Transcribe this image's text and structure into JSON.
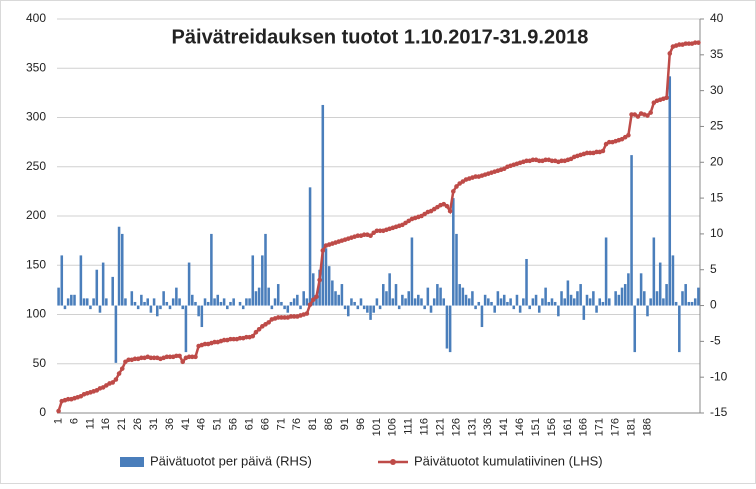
{
  "chart_data": {
    "type": "combo",
    "title": "Päivätreidauksen tuotot 1.10.2017-31.9.2018",
    "categories": [
      1,
      null,
      null,
      null,
      null,
      6,
      null,
      null,
      null,
      null,
      11,
      null,
      null,
      null,
      null,
      16,
      null,
      null,
      null,
      null,
      21,
      null,
      null,
      null,
      null,
      26,
      null,
      null,
      null,
      null,
      31,
      null,
      null,
      null,
      null,
      36,
      null,
      null,
      null,
      null,
      41,
      null,
      null,
      null,
      null,
      46,
      null,
      null,
      null,
      null,
      51,
      null,
      null,
      null,
      null,
      56,
      null,
      null,
      null,
      null,
      61,
      null,
      null,
      null,
      null,
      66,
      null,
      null,
      null,
      null,
      71,
      null,
      null,
      null,
      null,
      76,
      null,
      null,
      null,
      null,
      81,
      null,
      null,
      null,
      null,
      86,
      null,
      null,
      null,
      null,
      91,
      null,
      null,
      null,
      null,
      96,
      null,
      null,
      null,
      null,
      101,
      null,
      null,
      null,
      null,
      106,
      null,
      null,
      null,
      null,
      111,
      null,
      null,
      null,
      null,
      116,
      null,
      null,
      null,
      null,
      121,
      null,
      null,
      null,
      null,
      126,
      null,
      null,
      null,
      null,
      131,
      null,
      null,
      null,
      null,
      136,
      null,
      null,
      null,
      null,
      141,
      null,
      null,
      null,
      null,
      146,
      null,
      null,
      null,
      null,
      151,
      null,
      null,
      null,
      null,
      156,
      null,
      null,
      null,
      null,
      161,
      null,
      null,
      null,
      null,
      166,
      null,
      null,
      null,
      null,
      171,
      null,
      null,
      null,
      null,
      176,
      null,
      null,
      null,
      null,
      181,
      null,
      null,
      null,
      null,
      186,
      null,
      null,
      null,
      null,
      null,
      null,
      null,
      null,
      null,
      null,
      null,
      null,
      null,
      null,
      null,
      null
    ],
    "series": [
      {
        "name": "Päivätuotot per päivä (RHS)",
        "type": "bar",
        "axis": "y2",
        "color": "#4a7ebb",
        "values": [
          2.5,
          7,
          -0.5,
          1,
          1.5,
          1.5,
          0,
          7,
          1,
          1,
          -0.5,
          1,
          5,
          -1,
          6,
          1,
          0,
          4,
          -8,
          11,
          10,
          1,
          0,
          2,
          0.5,
          -0.5,
          1.5,
          0.5,
          1,
          -1,
          1,
          -1.5,
          -0.5,
          2,
          0.5,
          -0.5,
          1,
          2.5,
          1,
          -0.5,
          -6.5,
          6,
          1.5,
          0.5,
          -1.5,
          -3,
          1,
          0.5,
          10,
          1,
          1.5,
          0.5,
          1,
          -0.5,
          0.5,
          1,
          0,
          0.5,
          -0.5,
          1,
          1,
          7,
          2,
          2.5,
          7,
          10,
          2.5,
          -0.5,
          1,
          3,
          0.5,
          -0.5,
          -1,
          0.5,
          1,
          1.5,
          -0.5,
          2,
          1,
          16.5,
          4.5,
          1,
          5,
          28,
          8,
          5.5,
          3.5,
          2,
          1.5,
          3,
          -0.5,
          -1.5,
          1,
          0.5,
          -0.5,
          1,
          -0.5,
          -1,
          -2,
          -1,
          1,
          -0.5,
          3,
          2,
          4.5,
          1,
          3,
          -0.5,
          1.5,
          1,
          2,
          9.5,
          1,
          1.5,
          1,
          -0.5,
          2.5,
          -1,
          1,
          3,
          2.5,
          1,
          -6,
          -6.5,
          15,
          10,
          3,
          2.5,
          1.5,
          1,
          2,
          -0.5,
          0.5,
          -3,
          1.5,
          1,
          0.5,
          -1,
          2,
          1,
          1.5,
          0.5,
          1,
          -0.5,
          1.5,
          -1,
          1,
          6.5,
          -0.5,
          1,
          1.5,
          -1,
          1,
          2.5,
          0.5,
          1,
          0.5,
          -1.5,
          2,
          1,
          3.5,
          1.5,
          1,
          2,
          3,
          -2,
          1.5,
          1,
          2,
          -1,
          1,
          0.5,
          9.5,
          1,
          0,
          2,
          1.5,
          2.5,
          3,
          4.5,
          21,
          -6.5,
          1,
          4.5,
          2,
          -1.5,
          1,
          9.5,
          2,
          6,
          1,
          3,
          32,
          7,
          0.5,
          -6.5,
          2,
          3,
          0.5,
          0.5,
          1,
          2.5
        ]
      },
      {
        "name": "Päivätuotot kumulatiivinen (LHS)",
        "type": "line",
        "color": "#be4b48",
        "values": [
          2,
          12,
          13,
          14,
          14,
          15,
          16,
          17,
          19,
          20,
          21,
          22,
          23,
          25,
          26,
          28,
          30,
          31,
          34,
          40,
          45,
          52,
          54,
          54,
          55,
          55,
          56,
          56,
          57,
          56,
          56,
          56,
          55,
          56,
          57,
          57,
          57,
          58,
          58,
          52,
          56,
          57,
          57,
          57,
          68,
          69,
          70,
          70,
          71,
          72,
          72,
          73,
          74,
          74,
          75,
          75,
          75,
          76,
          76,
          77,
          77,
          78,
          82,
          85,
          88,
          90,
          92,
          95,
          96,
          97,
          97,
          97,
          97,
          98,
          98,
          98,
          99,
          100,
          101,
          110,
          115,
          118,
          135,
          165,
          170,
          171,
          172,
          173,
          174,
          175,
          176,
          177,
          178,
          179,
          180,
          180,
          181,
          181,
          180,
          183,
          185,
          185,
          185,
          186,
          187,
          188,
          189,
          190,
          191,
          193,
          195,
          197,
          198,
          199,
          200,
          202,
          204,
          205,
          207,
          209,
          211,
          212,
          210,
          205,
          225,
          230,
          233,
          235,
          237,
          238,
          239,
          240,
          240,
          241,
          242,
          243,
          244,
          245,
          246,
          247,
          248,
          250,
          251,
          252,
          253,
          254,
          255,
          256,
          256,
          257,
          257,
          256,
          256,
          257,
          257,
          256,
          256,
          255,
          256,
          256,
          257,
          258,
          260,
          261,
          262,
          263,
          264,
          264,
          264,
          265,
          265,
          266,
          273,
          275,
          275,
          276,
          277,
          278,
          280,
          282,
          303,
          303,
          301,
          304,
          303,
          302,
          305,
          315,
          317,
          318,
          319,
          320,
          365,
          372,
          373,
          374,
          374,
          375,
          375,
          375,
          376,
          376
        ]
      }
    ],
    "ylim": [
      0,
      400
    ],
    "yticks": [
      0,
      50,
      100,
      150,
      200,
      250,
      300,
      350,
      400
    ],
    "y2lim": [
      -15,
      40
    ],
    "y2ticks": [
      -15,
      -10,
      -5,
      0,
      5,
      10,
      15,
      20,
      25,
      30,
      35,
      40
    ],
    "grid": true,
    "legend": "bottom"
  }
}
